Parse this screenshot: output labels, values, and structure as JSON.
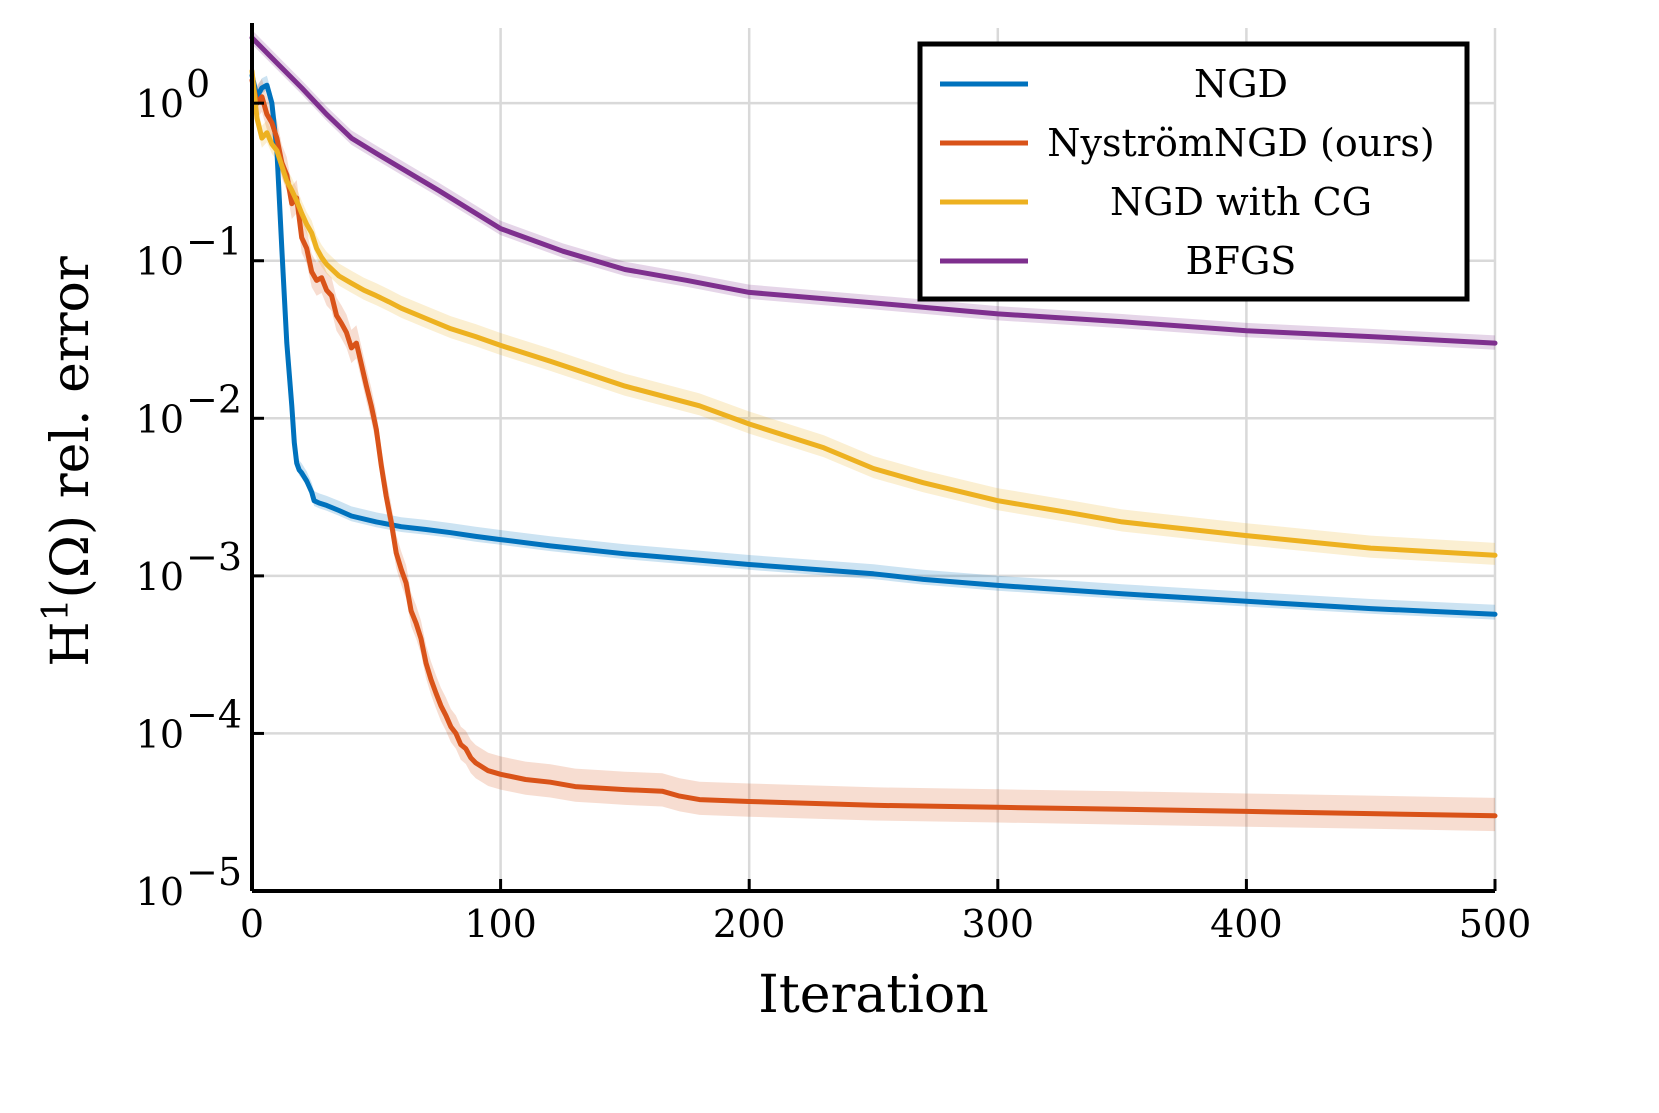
{
  "chart_data": {
    "type": "line",
    "title": "",
    "xlabel": "Iteration",
    "ylabel": "H^1(Ω) rel. error",
    "ylabel_parts": {
      "base": "H",
      "sup": "1",
      "rest": "(Ω) rel. error"
    },
    "xlim": [
      0,
      500
    ],
    "ylim": [
      1e-05,
      3
    ],
    "yscale": "log",
    "grid": true,
    "legend_position": "top-right",
    "x_ticks": [
      {
        "value": 0,
        "label": "0"
      },
      {
        "value": 100,
        "label": "100"
      },
      {
        "value": 200,
        "label": "200"
      },
      {
        "value": 300,
        "label": "300"
      },
      {
        "value": 400,
        "label": "400"
      },
      {
        "value": 500,
        "label": "500"
      }
    ],
    "y_ticks": [
      {
        "value": 1,
        "base": "10",
        "exp": "0"
      },
      {
        "value": 0.1,
        "base": "10",
        "exp": "−1"
      },
      {
        "value": 0.01,
        "base": "10",
        "exp": "−2"
      },
      {
        "value": 0.001,
        "base": "10",
        "exp": "−3"
      },
      {
        "value": 0.0001,
        "base": "10",
        "exp": "−4"
      },
      {
        "value": 1e-05,
        "base": "10",
        "exp": "−5"
      }
    ],
    "series": [
      {
        "name": "NGD",
        "color": "#0072bd",
        "x": [
          0,
          2,
          4,
          6,
          8,
          10,
          12,
          14,
          16,
          17,
          18,
          19,
          20,
          22,
          24,
          25,
          27,
          30,
          35,
          40,
          50,
          60,
          70,
          80,
          90,
          100,
          120,
          150,
          200,
          250,
          270,
          300,
          350,
          400,
          450,
          500
        ],
        "y": [
          1.5,
          1.1,
          1.25,
          1.3,
          1.0,
          0.5,
          0.12,
          0.03,
          0.012,
          0.007,
          0.0052,
          0.0047,
          0.0045,
          0.004,
          0.0034,
          0.003,
          0.0029,
          0.0028,
          0.0026,
          0.0024,
          0.0022,
          0.00205,
          0.00197,
          0.00188,
          0.00178,
          0.0017,
          0.00155,
          0.00138,
          0.00118,
          0.00103,
          0.00095,
          0.00087,
          0.00077,
          0.00069,
          0.00062,
          0.00057
        ],
        "band": [
          1.15,
          1.08
        ]
      },
      {
        "name": "NyströmNGD (ours)",
        "color": "#d95319",
        "x": [
          0,
          2,
          4,
          6,
          8,
          10,
          12,
          14,
          16,
          18,
          20,
          22,
          24,
          26,
          28,
          30,
          32,
          34,
          36,
          38,
          40,
          42,
          44,
          46,
          48,
          50,
          52,
          54,
          56,
          58,
          60,
          62,
          64,
          66,
          68,
          70,
          72,
          74,
          76,
          78,
          80,
          82,
          84,
          86,
          88,
          90,
          95,
          100,
          110,
          120,
          130,
          140,
          150,
          165,
          172,
          180,
          200,
          250,
          300,
          350,
          400,
          450,
          500
        ],
        "y": [
          1.4,
          1.0,
          1.1,
          0.85,
          0.75,
          0.6,
          0.42,
          0.35,
          0.23,
          0.25,
          0.14,
          0.12,
          0.085,
          0.075,
          0.078,
          0.065,
          0.06,
          0.045,
          0.04,
          0.035,
          0.028,
          0.03,
          0.022,
          0.016,
          0.012,
          0.0085,
          0.005,
          0.0032,
          0.0022,
          0.0014,
          0.0011,
          0.0009,
          0.0006,
          0.0005,
          0.0004,
          0.00028,
          0.00022,
          0.00018,
          0.00015,
          0.00013,
          0.00011,
          0.0001,
          8.5e-05,
          8e-05,
          7e-05,
          6.5e-05,
          5.8e-05,
          5.5e-05,
          5.1e-05,
          4.9e-05,
          4.6e-05,
          4.5e-05,
          4.4e-05,
          4.3e-05,
          4e-05,
          3.8e-05,
          3.7e-05,
          3.5e-05,
          3.4e-05,
          3.3e-05,
          3.2e-05,
          3.1e-05,
          3e-05
        ],
        "band": [
          1.3,
          1.25
        ]
      },
      {
        "name": "NGD with CG",
        "color": "#edb120",
        "x": [
          0,
          2,
          4,
          6,
          8,
          10,
          12,
          14,
          16,
          18,
          20,
          22,
          24,
          26,
          28,
          30,
          35,
          40,
          45,
          50,
          55,
          60,
          70,
          80,
          90,
          100,
          120,
          150,
          180,
          200,
          230,
          250,
          270,
          300,
          330,
          350,
          400,
          450,
          500
        ],
        "y": [
          1.6,
          0.8,
          0.6,
          0.65,
          0.55,
          0.5,
          0.4,
          0.32,
          0.28,
          0.24,
          0.2,
          0.17,
          0.15,
          0.12,
          0.105,
          0.095,
          0.08,
          0.072,
          0.065,
          0.06,
          0.055,
          0.05,
          0.043,
          0.037,
          0.033,
          0.029,
          0.023,
          0.016,
          0.012,
          0.0092,
          0.0065,
          0.0048,
          0.0039,
          0.003,
          0.0025,
          0.0022,
          0.0018,
          0.0015,
          0.00135
        ],
        "band": [
          1.2,
          1.15
        ]
      },
      {
        "name": "BFGS",
        "color": "#7e2f8e",
        "x": [
          0,
          10,
          20,
          30,
          40,
          50,
          75,
          100,
          125,
          150,
          175,
          200,
          250,
          300,
          350,
          400,
          450,
          500
        ],
        "y": [
          2.6,
          1.8,
          1.25,
          0.85,
          0.6,
          0.48,
          0.28,
          0.16,
          0.115,
          0.088,
          0.075,
          0.063,
          0.054,
          0.046,
          0.041,
          0.036,
          0.033,
          0.03
        ],
        "band": [
          1.12,
          1.1
        ]
      }
    ]
  }
}
